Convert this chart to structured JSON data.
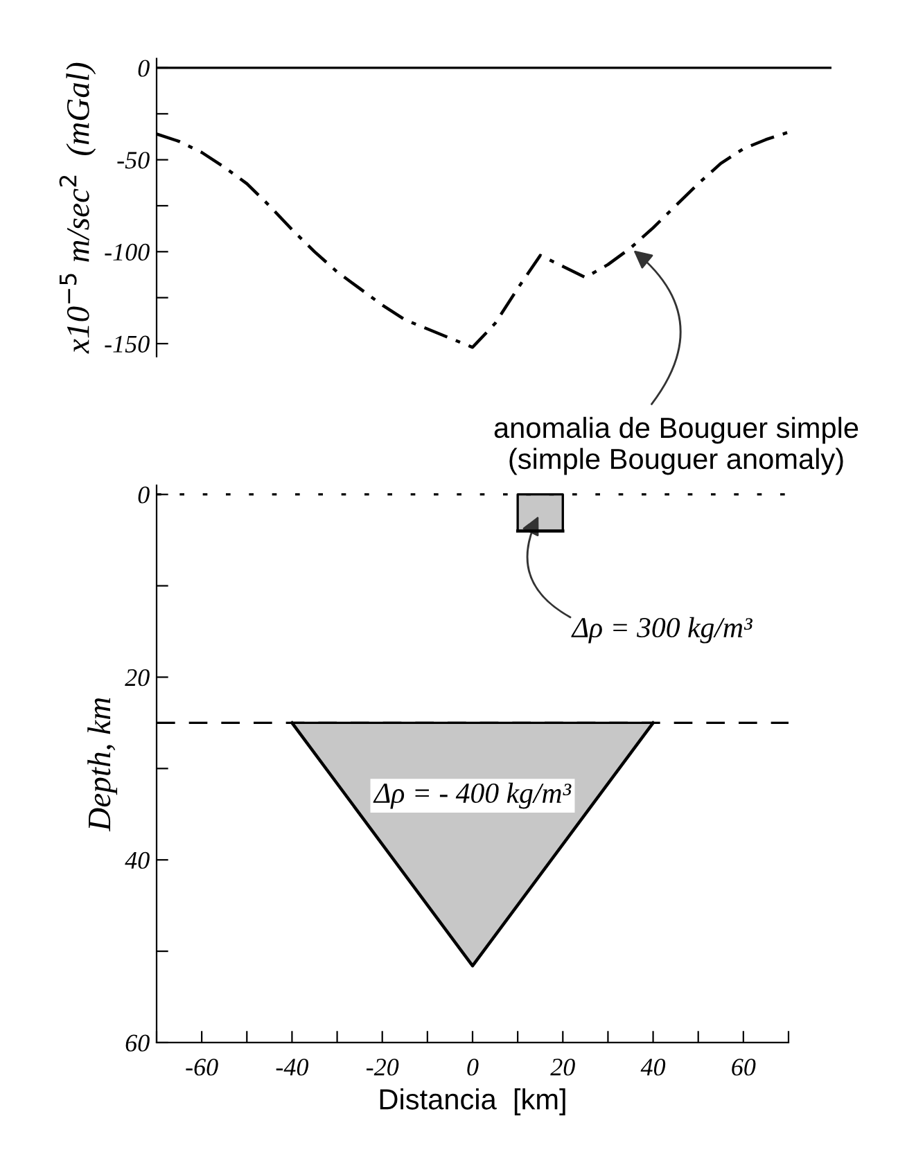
{
  "chart_data": [
    {
      "type": "line",
      "ylabel": "x10$^{−5}$ m/sec$^{2}$  (mGal)",
      "ylim": [
        -157,
        5
      ],
      "categories": [
        null,
        null,
        null,
        null,
        null,
        null,
        null,
        null,
        null,
        null,
        null,
        null,
        null,
        null,
        null,
        null,
        null,
        null,
        null,
        null,
        null,
        null,
        null,
        null,
        null,
        null,
        null,
        null,
        null
      ],
      "yticks": [
        0,
        {
          "value": -25,
          "label": null
        },
        -50,
        {
          "value": -75,
          "label": null
        },
        -100,
        {
          "value": -125,
          "label": null
        },
        -150
      ],
      "tick_labels": "y",
      "grid": false,
      "legend": false,
      "line_style": "dashed",
      "marker": "none",
      "ref_lines": [
        {
          "axis": "y",
          "value": 0,
          "line_style": "solid",
          "color": "#000000"
        }
      ],
      "series": [
        {
          "color": "#000000",
          "values": [
            -36,
            -40,
            -46,
            -54,
            -63,
            -75,
            -88,
            -100,
            -111,
            -120,
            -129,
            -137,
            -142,
            -147,
            -152,
            -139,
            -120,
            -102,
            -108,
            -114,
            -107,
            -98,
            -87,
            -75,
            -63,
            -52,
            -44,
            -39,
            -35
          ]
        }
      ],
      "annotations": [
        "anomalia de Bouguer simple\n(simple Bouguer anomaly)"
      ]
    },
    {
      "type": "line",
      "xlabel": "Distancia  [km]",
      "ylabel": "Depth, km",
      "xlim": [
        -70,
        70
      ],
      "ylim": [
        60,
        -1
      ],
      "xticks": [
        {
          "value": -70,
          "label": null
        },
        -60,
        {
          "value": -50,
          "label": null
        },
        -40,
        {
          "value": -30,
          "label": null
        },
        -20,
        {
          "value": -10,
          "label": null
        },
        0,
        {
          "value": 10,
          "label": null
        },
        20,
        {
          "value": 30,
          "label": null
        },
        40,
        {
          "value": 50,
          "label": null
        },
        60,
        {
          "value": 70,
          "label": null
        }
      ],
      "yticks": [
        0,
        {
          "value": 10,
          "label": null
        },
        20,
        {
          "value": 30,
          "label": null
        },
        40,
        {
          "value": 50,
          "label": null
        },
        60
      ],
      "grid": false,
      "legend": false,
      "marker": "none",
      "line_style": "solid",
      "ref_lines": [
        {
          "axis": "y",
          "value": 0,
          "line_style": "dotted",
          "color": "#000000"
        },
        {
          "axis": "y",
          "value": 25,
          "line_style": "dashed",
          "color": "#000000"
        }
      ],
      "series": [
        {
          "color": "#000000",
          "x": [
            -40,
            0,
            40
          ],
          "values": [
            25,
            51.6,
            25
          ],
          "lower": [
            25,
            25,
            25
          ],
          "upper": [
            25,
            51.6,
            25
          ]
        },
        {
          "color": "#000000",
          "x": [
            10,
            20
          ],
          "values": [
            4,
            4
          ],
          "lower": [
            0,
            0
          ],
          "upper": [
            4,
            4
          ]
        }
      ],
      "annotations": [
        "Δρ = 300 kg/m³",
        "Δρ = - 400 kg/m³"
      ]
    }
  ]
}
